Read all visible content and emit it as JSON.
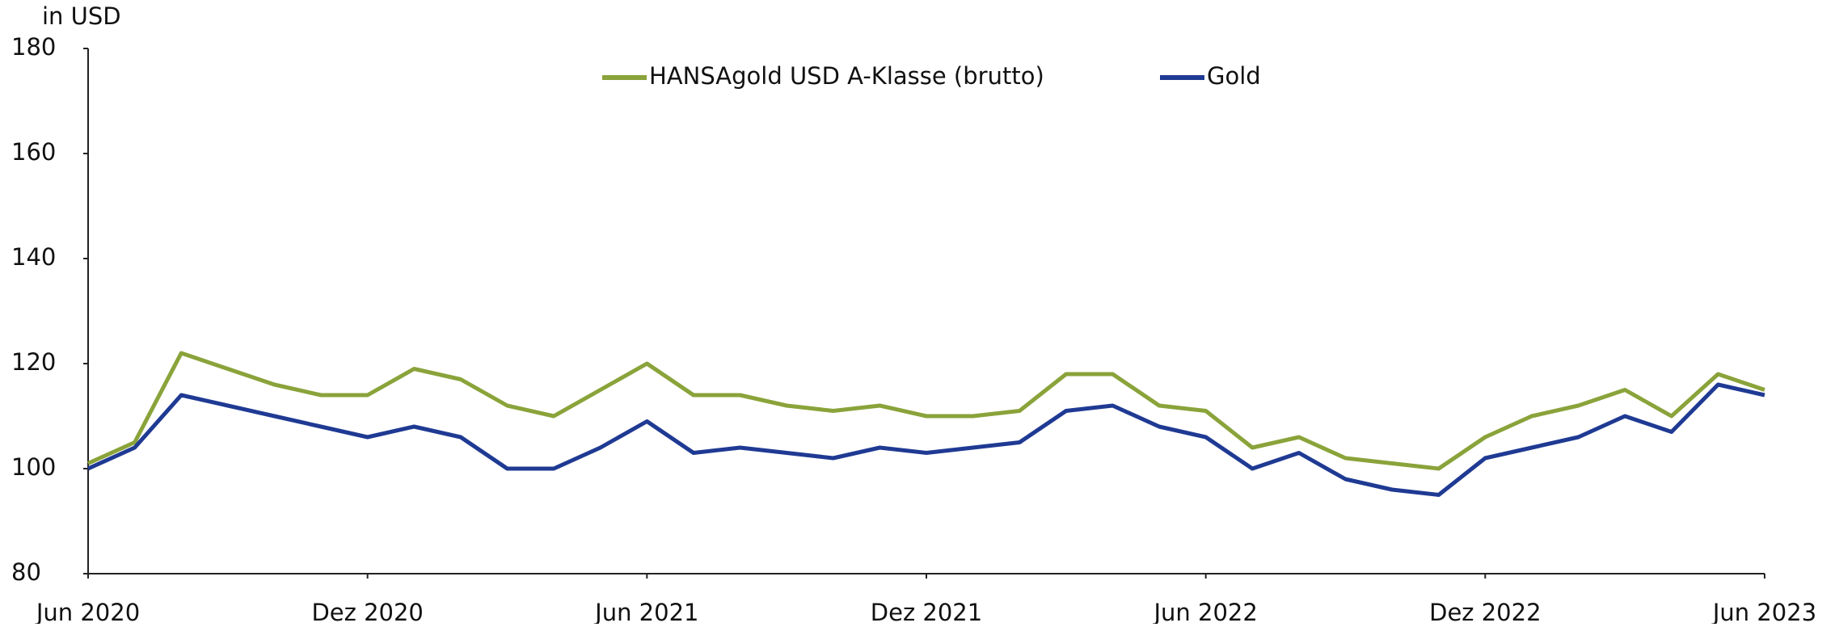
{
  "chart_data": {
    "type": "line",
    "y_label": "in USD",
    "x": [
      "2020-06",
      "2020-07",
      "2020-08",
      "2020-09",
      "2020-10",
      "2020-11",
      "2020-12",
      "2021-01",
      "2021-02",
      "2021-03",
      "2021-04",
      "2021-05",
      "2021-06",
      "2021-07",
      "2021-08",
      "2021-09",
      "2021-10",
      "2021-11",
      "2021-12",
      "2022-01",
      "2022-02",
      "2022-03",
      "2022-04",
      "2022-05",
      "2022-06",
      "2022-07",
      "2022-08",
      "2022-09",
      "2022-10",
      "2022-11",
      "2022-12",
      "2023-01",
      "2023-02",
      "2023-03",
      "2023-04",
      "2023-05",
      "2023-06"
    ],
    "series": [
      {
        "name": "HANSAgold USD A-Klasse (brutto)",
        "color": "#8aa33a",
        "values": [
          101,
          105,
          122,
          119,
          116,
          114,
          114,
          119,
          117,
          112,
          110,
          115,
          120,
          114,
          114,
          112,
          111,
          112,
          110,
          110,
          111,
          118,
          118,
          112,
          111,
          104,
          106,
          102,
          101,
          100,
          106,
          110,
          112,
          115,
          110,
          118,
          115
        ]
      },
      {
        "name": "Gold",
        "color": "#1f3a93",
        "values": [
          100,
          104,
          114,
          112,
          110,
          108,
          106,
          108,
          106,
          100,
          100,
          104,
          109,
          103,
          104,
          103,
          102,
          104,
          103,
          104,
          105,
          111,
          112,
          108,
          106,
          100,
          103,
          98,
          96,
          95,
          102,
          104,
          106,
          110,
          107,
          116,
          114
        ]
      }
    ],
    "ylim": [
      80,
      180
    ],
    "yticks": [
      80,
      100,
      120,
      140,
      160,
      180
    ],
    "xticks": [
      {
        "value": "2020-06",
        "label": "Jun 2020"
      },
      {
        "value": "2020-12",
        "label": "Dez 2020"
      },
      {
        "value": "2021-06",
        "label": "Jun 2021"
      },
      {
        "value": "2021-12",
        "label": "Dez 2021"
      },
      {
        "value": "2022-06",
        "label": "Jun 2022"
      },
      {
        "value": "2022-12",
        "label": "Dez 2022"
      },
      {
        "value": "2023-06",
        "label": "Jun 2023"
      }
    ],
    "grid": false
  }
}
